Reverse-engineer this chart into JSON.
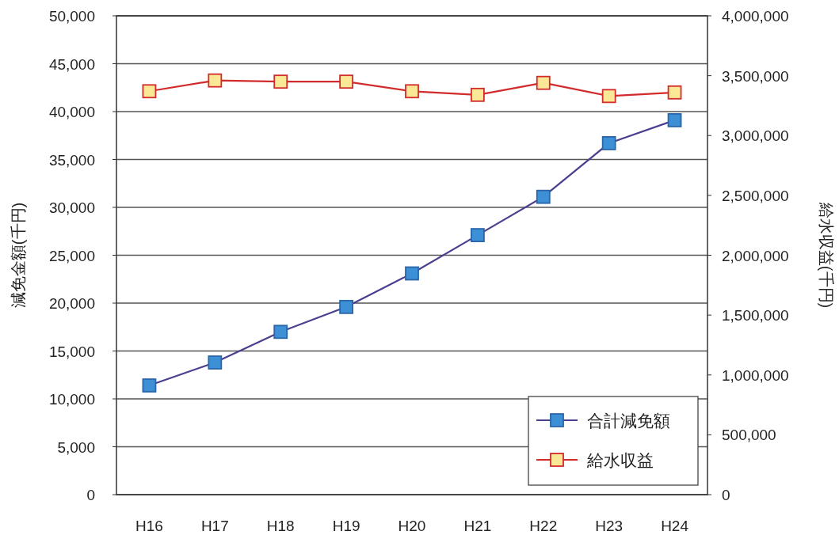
{
  "chart_data": {
    "type": "line",
    "categories": [
      "H16",
      "H17",
      "H18",
      "H19",
      "H20",
      "H21",
      "H22",
      "H23",
      "H24"
    ],
    "series": [
      {
        "name": "合計減免額",
        "color": "#3d8fd6",
        "axis": "y",
        "values": [
          11400,
          13800,
          17000,
          19600,
          23100,
          27100,
          31100,
          36700,
          39100
        ]
      },
      {
        "name": "給水収益",
        "color": "#d22b2b",
        "axis": "y2",
        "values": [
          3370000,
          3460000,
          3450000,
          3450000,
          3370000,
          3340000,
          3440000,
          3330000,
          3360000
        ]
      }
    ],
    "ylabel": "減免金額(千円)",
    "y2label": "給水収益(千円)",
    "ylim": [
      0,
      50000
    ],
    "yticks": [
      0,
      {
        "value": 5000,
        "label": "5,000"
      },
      {
        "value": 10000,
        "label": "10,000"
      },
      {
        "value": 15000,
        "label": "15,000"
      },
      {
        "value": 20000,
        "label": "20,000"
      },
      {
        "value": 25000,
        "label": "25,000"
      },
      {
        "value": 30000,
        "label": "30,000"
      },
      {
        "value": 35000,
        "label": "35,000"
      },
      {
        "value": 40000,
        "label": "40,000"
      },
      {
        "value": 45000,
        "label": "45,000"
      },
      {
        "value": 50000,
        "label": "50,000"
      }
    ],
    "y2lim": [
      0,
      4000000
    ],
    "y2ticks": [
      0,
      {
        "value": 500000,
        "label": "500,000"
      },
      {
        "value": 1000000,
        "label": "1,000,000"
      },
      {
        "value": 1500000,
        "label": "1,500,000"
      },
      {
        "value": 2000000,
        "label": "2,000,000"
      },
      {
        "value": 2500000,
        "label": "2,500,000"
      },
      {
        "value": 3000000,
        "label": "3,000,000"
      },
      {
        "value": 3500000,
        "label": "3,500,000"
      },
      {
        "value": 4000000,
        "label": "4,000,000"
      }
    ],
    "grid": "y",
    "legend": "bottom right",
    "marker": "square"
  }
}
